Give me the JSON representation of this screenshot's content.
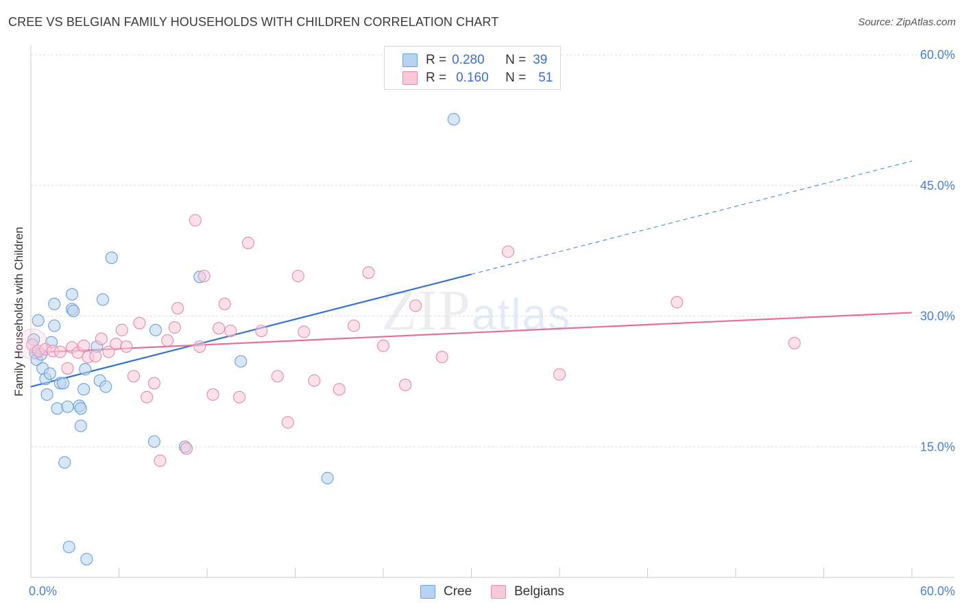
{
  "title": "CREE VS BELGIAN FAMILY HOUSEHOLDS WITH CHILDREN CORRELATION CHART",
  "source": "Source: ZipAtlas.com",
  "watermark": {
    "zip": "ZIP",
    "atlas": "atlas"
  },
  "legend": {
    "rows": [
      {
        "r_label": "R =",
        "r_value": "0.280",
        "n_label": "N =",
        "n_value": "39",
        "color": "#b7d3f3",
        "border": "#6a9fd8"
      },
      {
        "r_label": "R =",
        "r_value": "0.160",
        "n_label": "N =",
        "n_value": "51",
        "color": "#f9c9d8",
        "border": "#e58aa8"
      }
    ]
  },
  "bottom_legend": [
    {
      "label": "Cree",
      "color": "#b7d3f3",
      "border": "#6a9fd8"
    },
    {
      "label": "Belgians",
      "color": "#f9c9d8",
      "border": "#e58aa8"
    }
  ],
  "chart_data": {
    "type": "scatter",
    "title": "CREE VS BELGIAN FAMILY HOUSEHOLDS WITH CHILDREN CORRELATION CHART",
    "xlabel": "",
    "ylabel": "Family Households with Children",
    "xlim": [
      0,
      60
    ],
    "ylim": [
      0,
      60
    ],
    "x_tick_labels": [
      "0.0%",
      "60.0%"
    ],
    "y_ticks": [
      15,
      30,
      45,
      60
    ],
    "y_tick_labels": [
      "15.0%",
      "30.0%",
      "45.0%",
      "60.0%"
    ],
    "grid": true,
    "series": [
      {
        "name": "Cree",
        "color": "#6a9fd8",
        "fill": "#b7d3f3",
        "points": [
          [
            0.2,
            27.3
          ],
          [
            0.3,
            25.8
          ],
          [
            0.4,
            25.0
          ],
          [
            0.5,
            29.5
          ],
          [
            0.7,
            25.6
          ],
          [
            0.8,
            24.0
          ],
          [
            1.0,
            22.8
          ],
          [
            1.1,
            21.0
          ],
          [
            1.3,
            23.4
          ],
          [
            1.4,
            27.0
          ],
          [
            1.6,
            28.9
          ],
          [
            1.6,
            31.4
          ],
          [
            1.8,
            19.4
          ],
          [
            2.0,
            22.3
          ],
          [
            2.2,
            22.3
          ],
          [
            2.3,
            13.2
          ],
          [
            2.5,
            19.6
          ],
          [
            2.6,
            3.5
          ],
          [
            2.8,
            30.8
          ],
          [
            2.8,
            32.5
          ],
          [
            2.9,
            30.6
          ],
          [
            3.3,
            19.7
          ],
          [
            3.4,
            19.4
          ],
          [
            3.4,
            17.4
          ],
          [
            3.6,
            21.6
          ],
          [
            3.7,
            23.9
          ],
          [
            3.8,
            2.1
          ],
          [
            4.5,
            26.5
          ],
          [
            4.7,
            22.6
          ],
          [
            4.9,
            31.9
          ],
          [
            5.1,
            21.9
          ],
          [
            5.5,
            36.7
          ],
          [
            8.4,
            15.6
          ],
          [
            8.5,
            28.4
          ],
          [
            10.5,
            15.0
          ],
          [
            11.5,
            34.5
          ],
          [
            14.3,
            24.8
          ],
          [
            20.2,
            11.4
          ],
          [
            28.8,
            52.6
          ]
        ],
        "trend": {
          "x0": 0,
          "y0": 21.9,
          "x1": 30.0,
          "y1": 34.8,
          "dash_x1": 60,
          "dash_y1": 47.8
        }
      },
      {
        "name": "Belgians",
        "color": "#e58aa8",
        "fill": "#f9c9d8",
        "points": [
          [
            0.1,
            26.7
          ],
          [
            0.5,
            26.0
          ],
          [
            1.0,
            26.2
          ],
          [
            1.5,
            26.0
          ],
          [
            2.0,
            25.9
          ],
          [
            2.5,
            24.0
          ],
          [
            2.8,
            26.4
          ],
          [
            3.2,
            25.8
          ],
          [
            3.6,
            26.6
          ],
          [
            3.9,
            25.3
          ],
          [
            4.4,
            25.4
          ],
          [
            4.8,
            27.4
          ],
          [
            5.3,
            25.9
          ],
          [
            5.8,
            26.8
          ],
          [
            6.2,
            28.4
          ],
          [
            6.5,
            26.5
          ],
          [
            7.0,
            23.1
          ],
          [
            7.4,
            29.2
          ],
          [
            7.9,
            20.7
          ],
          [
            8.4,
            22.3
          ],
          [
            8.8,
            13.4
          ],
          [
            9.3,
            27.2
          ],
          [
            9.8,
            28.7
          ],
          [
            10.0,
            30.9
          ],
          [
            10.6,
            14.8
          ],
          [
            11.2,
            41.0
          ],
          [
            11.5,
            26.5
          ],
          [
            11.8,
            34.6
          ],
          [
            12.4,
            21.0
          ],
          [
            12.8,
            28.6
          ],
          [
            13.2,
            31.4
          ],
          [
            13.6,
            28.3
          ],
          [
            14.2,
            20.7
          ],
          [
            14.8,
            38.4
          ],
          [
            15.7,
            28.3
          ],
          [
            16.8,
            23.1
          ],
          [
            17.5,
            17.8
          ],
          [
            18.2,
            34.6
          ],
          [
            18.6,
            28.2
          ],
          [
            19.3,
            22.6
          ],
          [
            21.0,
            21.6
          ],
          [
            22.0,
            28.9
          ],
          [
            23.0,
            35.0
          ],
          [
            24.0,
            26.6
          ],
          [
            25.5,
            22.1
          ],
          [
            26.2,
            31.2
          ],
          [
            28.0,
            25.3
          ],
          [
            32.5,
            37.4
          ],
          [
            36.0,
            23.3
          ],
          [
            44.0,
            31.6
          ],
          [
            52.0,
            26.9
          ]
        ],
        "trend": {
          "x0": 0,
          "y0": 25.8,
          "x1": 60,
          "y1": 30.4
        }
      }
    ]
  }
}
